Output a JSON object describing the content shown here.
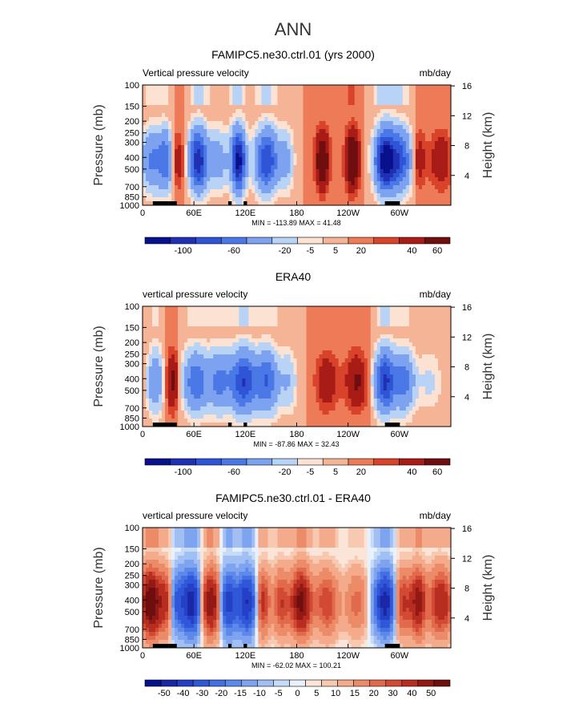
{
  "figure_title": "ANN",
  "colors": {
    "levels11": [
      "#08108c",
      "#1f30b4",
      "#2f55d6",
      "#4a78e6",
      "#7da2ef",
      "#b8d3f6",
      "#fbe2d3",
      "#f6b497",
      "#ee7b58",
      "#d9432a",
      "#a81b16",
      "#6e0e0e"
    ],
    "levels19": [
      "#08108c",
      "#1a28a8",
      "#2440c4",
      "#2f57d8",
      "#4570e4",
      "#5d89ea",
      "#7ea3ef",
      "#a2bff4",
      "#c6dbf8",
      "#e9f1fc",
      "#fbe5d8",
      "#f8c9b1",
      "#f3ab8b",
      "#ec8b68",
      "#e26a4c",
      "#d24a33",
      "#b72d20",
      "#931915",
      "#6e0e0e"
    ]
  },
  "chart_data": [
    {
      "type": "heatmap",
      "title": "FAMIPC5.ne30.ctrl.01 (yrs 2000)",
      "variable": "Vertical pressure velocity",
      "units": "mb/day",
      "ylabel": "Pressure (mb)",
      "ylabel_right": "Height (km)",
      "x_ticks": [
        "0",
        "60E",
        "120E",
        "180",
        "120W",
        "60W"
      ],
      "x_tick_values": [
        0,
        60,
        120,
        180,
        240,
        300
      ],
      "xlim": [
        0,
        360
      ],
      "y_ticks": [
        "100",
        "150",
        "200",
        "250",
        "300",
        "400",
        "500",
        "700",
        "850",
        "1000"
      ],
      "y_tick_values": [
        100,
        150,
        200,
        250,
        300,
        400,
        500,
        700,
        850,
        1000
      ],
      "ylim": [
        1000,
        100
      ],
      "height_ticks": [
        "4",
        "8",
        "12",
        "16"
      ],
      "height_tick_values": [
        4,
        8,
        12,
        16
      ],
      "stats_text": "MIN = -113.89   MAX =   41.48",
      "colorbar_labels": [
        "-100",
        "-60",
        "-20",
        "-5",
        "5",
        "20",
        "40",
        "60"
      ],
      "colorbar_levels": [
        -100,
        -80,
        -60,
        -40,
        -20,
        -10,
        -5,
        0,
        5,
        10,
        20,
        40,
        60
      ],
      "features": [
        {
          "lon": 12,
          "sign": -1,
          "mag": 45
        },
        {
          "lon": 28,
          "sign": -1,
          "mag": 55
        },
        {
          "lon": 38,
          "sign": 1,
          "mag": 20
        },
        {
          "lon": 65,
          "sign": -1,
          "mag": 95
        },
        {
          "lon": 88,
          "sign": -1,
          "mag": 30
        },
        {
          "lon": 112,
          "sign": -1,
          "mag": 110
        },
        {
          "lon": 145,
          "sign": -1,
          "mag": 80
        },
        {
          "lon": 168,
          "sign": -1,
          "mag": 25
        },
        {
          "lon": 210,
          "sign": 1,
          "mag": 35
        },
        {
          "lon": 245,
          "sign": 1,
          "mag": 40
        },
        {
          "lon": 283,
          "sign": -1,
          "mag": 110
        },
        {
          "lon": 300,
          "sign": -1,
          "mag": 70
        },
        {
          "lon": 322,
          "sign": 1,
          "mag": 20
        },
        {
          "lon": 348,
          "sign": 1,
          "mag": 18
        }
      ]
    },
    {
      "type": "heatmap",
      "title": "ERA40",
      "variable": "vertical pressure velocity",
      "units": "mb/day",
      "ylabel": "Pressure (mb)",
      "ylabel_right": "Height (km)",
      "x_ticks": [
        "0",
        "60E",
        "120E",
        "180",
        "120W",
        "60W"
      ],
      "x_tick_values": [
        0,
        60,
        120,
        180,
        240,
        300
      ],
      "xlim": [
        0,
        360
      ],
      "y_ticks": [
        "100",
        "150",
        "200",
        "250",
        "300",
        "400",
        "500",
        "700",
        "850",
        "1000"
      ],
      "y_tick_values": [
        100,
        150,
        200,
        250,
        300,
        400,
        500,
        700,
        850,
        1000
      ],
      "ylim": [
        1000,
        100
      ],
      "height_ticks": [
        "4",
        "8",
        "12",
        "16"
      ],
      "height_tick_values": [
        4,
        8,
        12,
        16
      ],
      "stats_text": "MIN = -87.86   MAX =   32.43",
      "colorbar_labels": [
        "-100",
        "-60",
        "-20",
        "-5",
        "5",
        "20",
        "40",
        "60"
      ],
      "colorbar_levels": [
        -100,
        -80,
        -60,
        -40,
        -20,
        -10,
        -5,
        0,
        5,
        10,
        20,
        40,
        60
      ],
      "features": [
        {
          "lon": 15,
          "sign": -1,
          "mag": 40
        },
        {
          "lon": 35,
          "sign": 1,
          "mag": 25
        },
        {
          "lon": 62,
          "sign": -1,
          "mag": 55
        },
        {
          "lon": 90,
          "sign": -1,
          "mag": 45
        },
        {
          "lon": 118,
          "sign": -1,
          "mag": 80
        },
        {
          "lon": 145,
          "sign": -1,
          "mag": 60
        },
        {
          "lon": 170,
          "sign": -1,
          "mag": 20
        },
        {
          "lon": 215,
          "sign": 1,
          "mag": 18
        },
        {
          "lon": 250,
          "sign": 1,
          "mag": 22
        },
        {
          "lon": 283,
          "sign": -1,
          "mag": 85
        },
        {
          "lon": 305,
          "sign": -1,
          "mag": 50
        },
        {
          "lon": 335,
          "sign": -1,
          "mag": 12
        }
      ]
    },
    {
      "type": "heatmap",
      "title": "FAMIPC5.ne30.ctrl.01 - ERA40",
      "variable": "vertical pressure velocity",
      "units": "mb/day",
      "ylabel": "Pressure (mb)",
      "ylabel_right": "Height (km)",
      "x_ticks": [
        "0",
        "60E",
        "120E",
        "180",
        "120W",
        "60W"
      ],
      "x_tick_values": [
        0,
        60,
        120,
        180,
        240,
        300
      ],
      "xlim": [
        0,
        360
      ],
      "y_ticks": [
        "100",
        "150",
        "200",
        "250",
        "300",
        "400",
        "500",
        "700",
        "850",
        "1000"
      ],
      "y_tick_values": [
        100,
        150,
        200,
        250,
        300,
        400,
        500,
        700,
        850,
        1000
      ],
      "ylim": [
        1000,
        100
      ],
      "height_ticks": [
        "4",
        "8",
        "12",
        "16"
      ],
      "height_tick_values": [
        4,
        8,
        12,
        16
      ],
      "stats_text": "MIN = -62.02   MAX = 100.21",
      "colorbar_labels": [
        "-50",
        "-40",
        "-30",
        "-20",
        "-15",
        "-10",
        "-5",
        "0",
        "5",
        "10",
        "15",
        "20",
        "30",
        "40",
        "50"
      ],
      "colorbar_levels": [
        -50,
        -40,
        -30,
        -20,
        -15,
        -10,
        -5,
        -2,
        -1,
        0,
        1,
        2,
        5,
        10,
        15,
        20,
        30,
        40,
        50
      ],
      "features": [
        {
          "lon": 10,
          "sign": 1,
          "mag": 55
        },
        {
          "lon": 28,
          "sign": 1,
          "mag": 30
        },
        {
          "lon": 40,
          "sign": -1,
          "mag": 25
        },
        {
          "lon": 58,
          "sign": -1,
          "mag": 45
        },
        {
          "lon": 80,
          "sign": 1,
          "mag": 40
        },
        {
          "lon": 100,
          "sign": -1,
          "mag": 35
        },
        {
          "lon": 122,
          "sign": -1,
          "mag": 40
        },
        {
          "lon": 140,
          "sign": 1,
          "mag": 25
        },
        {
          "lon": 162,
          "sign": 1,
          "mag": 20
        },
        {
          "lon": 185,
          "sign": 1,
          "mag": 45
        },
        {
          "lon": 215,
          "sign": 1,
          "mag": 20
        },
        {
          "lon": 250,
          "sign": 1,
          "mag": 12
        },
        {
          "lon": 285,
          "sign": -1,
          "mag": 55
        },
        {
          "lon": 300,
          "sign": 1,
          "mag": 30
        },
        {
          "lon": 322,
          "sign": 1,
          "mag": 35
        },
        {
          "lon": 348,
          "sign": 1,
          "mag": 30
        }
      ]
    }
  ]
}
